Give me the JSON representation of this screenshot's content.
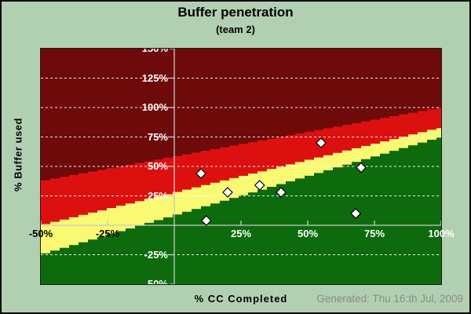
{
  "header": {
    "title": "Buffer penetration",
    "subtitle": "(team 2)"
  },
  "footer": {
    "x_axis_title": "% CC Completed",
    "generated_note": "Generated: Thu 16:th Jul, 2009"
  },
  "chart_data": {
    "type": "scatter",
    "title": "Buffer penetration",
    "subtitle": "(team 2)",
    "xlabel": "% CC Completed",
    "ylabel": "% Buffer used",
    "xlim": [
      -50,
      100
    ],
    "ylim": [
      -50,
      150
    ],
    "grid": "horizontal white dashed gridlines every 25%, axes cross at origin (0,0)",
    "legend": "none",
    "x_ticks": [
      {
        "value": -50,
        "label": "-50%",
        "color": "#000000"
      },
      {
        "value": -25,
        "label": "-25%",
        "color": "#000000"
      },
      {
        "value": 25,
        "label": "25%",
        "color": "#ffffff"
      },
      {
        "value": 50,
        "label": "50%",
        "color": "#ffffff"
      },
      {
        "value": 75,
        "label": "75%",
        "color": "#ffffff"
      },
      {
        "value": 100,
        "label": "100%",
        "color": "#ffffff"
      }
    ],
    "y_ticks": [
      {
        "value": 150,
        "label": "150%",
        "color": "#ffffff"
      },
      {
        "value": 125,
        "label": "125%",
        "color": "#ffffff"
      },
      {
        "value": 100,
        "label": "100%",
        "color": "#ffffff"
      },
      {
        "value": 75,
        "label": "75%",
        "color": "#ffffff"
      },
      {
        "value": 50,
        "label": "50%",
        "color": "#ffffff"
      },
      {
        "value": 25,
        "label": "25%",
        "color": "#ffffff"
      },
      {
        "value": -25,
        "label": "-25%",
        "color": "#ffffff"
      },
      {
        "value": -50,
        "label": "-50%",
        "color": "#ffffff"
      }
    ],
    "y_gridlines": [
      -25,
      25,
      50,
      75,
      100,
      125
    ],
    "zones": {
      "description": "diagonal risk bands; each band boundary is a straight line given by % buffer used at x=-50% and at x=100% CC completed",
      "top_zone": {
        "name": "dark-red",
        "color": "#6e0a0a"
      },
      "bands": [
        {
          "name": "red",
          "color": "#dd1010",
          "boundary_y_at_xmin": 37.5,
          "boundary_y_at_xmax": 100
        },
        {
          "name": "yellow",
          "color": "#f9f973",
          "boundary_y_at_xmin": 0,
          "boundary_y_at_xmax": 83
        },
        {
          "name": "green",
          "color": "#0d6b0d",
          "boundary_y_at_xmin": -25,
          "boundary_y_at_xmax": 75
        }
      ]
    },
    "points": [
      {
        "x": 10,
        "y": 44
      },
      {
        "x": 12,
        "y": 4
      },
      {
        "x": 20,
        "y": 28
      },
      {
        "x": 32,
        "y": 34
      },
      {
        "x": 40,
        "y": 28
      },
      {
        "x": 55,
        "y": 70
      },
      {
        "x": 68,
        "y": 10
      },
      {
        "x": 70,
        "y": 49
      }
    ],
    "marker": {
      "shape": "diamond",
      "fill": "#ffffff",
      "stroke": "#000000",
      "size": 12
    },
    "colors": {
      "background": "#b1d0b1",
      "frame_border": "#000000",
      "plot_border": "#1c1c1c",
      "axis_line": "#c9c9c9",
      "gridline": "#ffffff",
      "title_text": "#000000",
      "generated_text": "#8b8b8b"
    }
  }
}
